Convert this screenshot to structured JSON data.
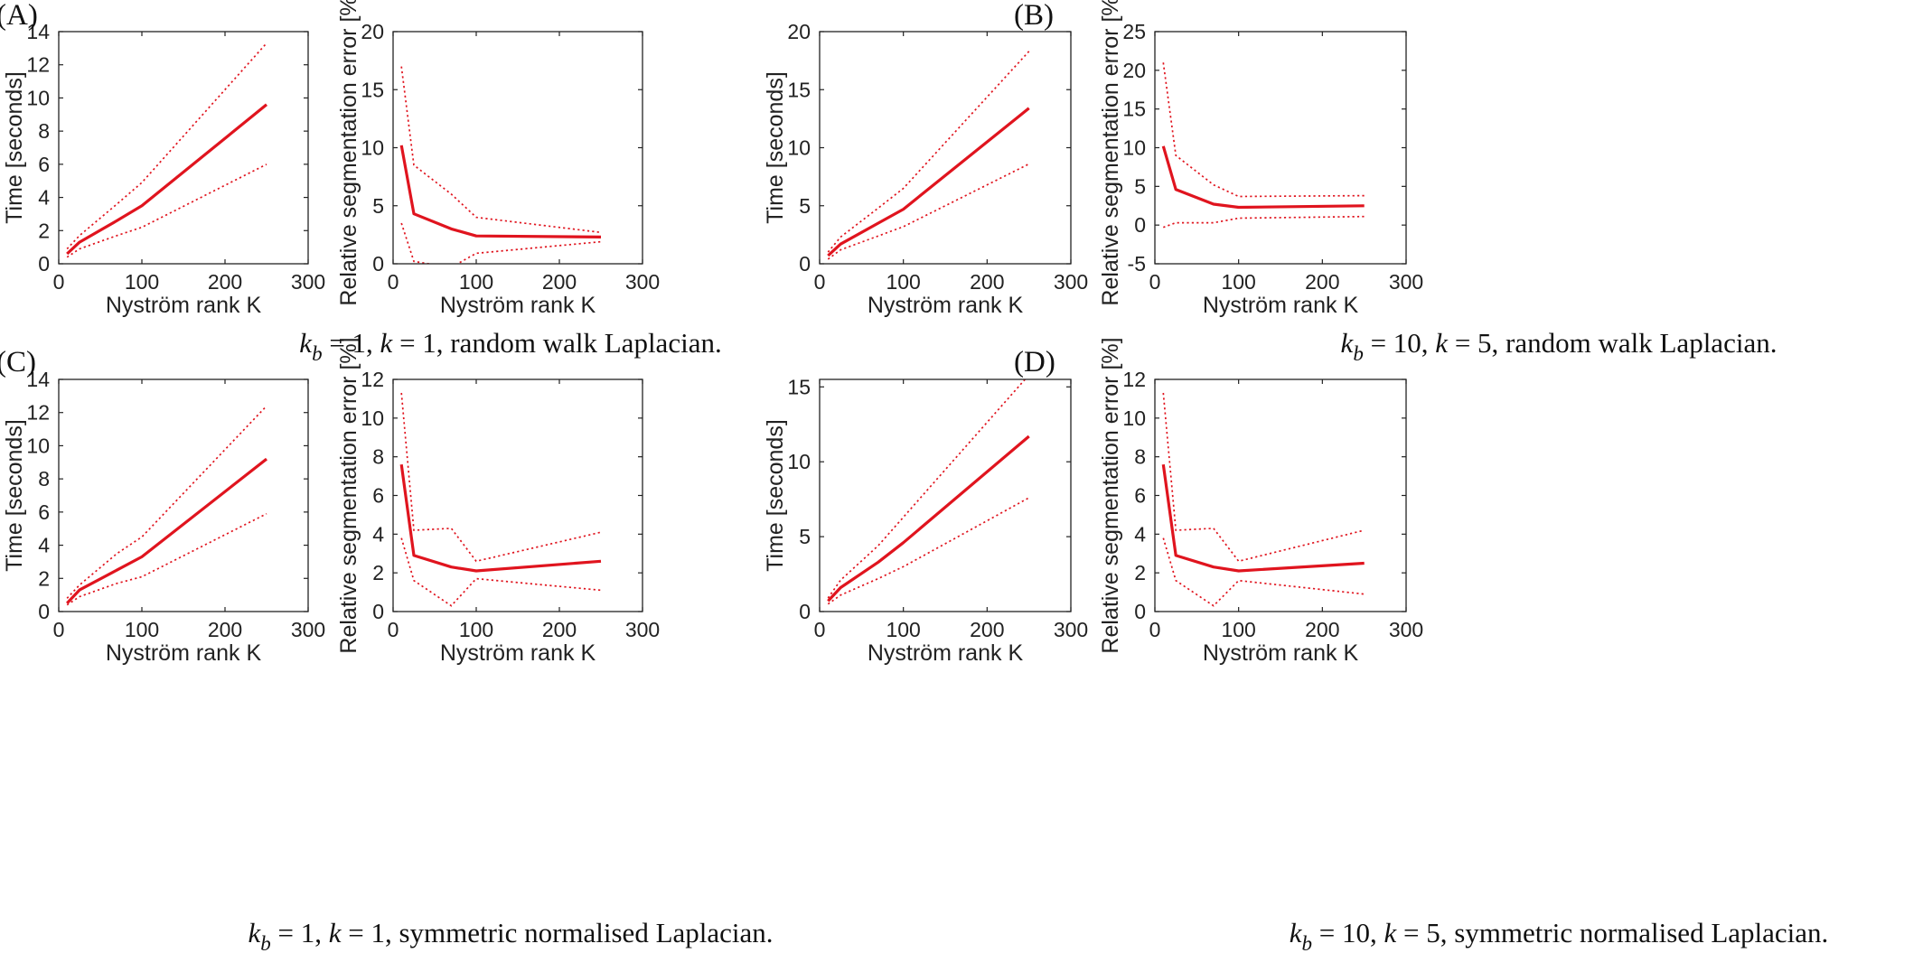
{
  "chart_data": [
    {
      "panel": "(A)",
      "plot": 1,
      "type": "line",
      "xlabel": "Nyström rank K",
      "ylabel": "Time [seconds]",
      "xlim": [
        0,
        300
      ],
      "ylim": [
        0,
        14
      ],
      "xticks": [
        "0",
        "100",
        "200",
        "300"
      ],
      "yticks": [
        "0",
        "2",
        "4",
        "6",
        "8",
        "10",
        "12",
        "14"
      ],
      "x": [
        10,
        25,
        70,
        100,
        250
      ],
      "series": [
        {
          "style": "mean",
          "values": [
            0.6,
            1.3,
            2.6,
            3.5,
            9.6
          ]
        },
        {
          "style": "upper",
          "values": [
            0.9,
            1.7,
            3.6,
            4.9,
            13.3
          ]
        },
        {
          "style": "lower",
          "values": [
            0.4,
            0.9,
            1.7,
            2.2,
            6.0
          ]
        }
      ]
    },
    {
      "panel": "(A)",
      "plot": 2,
      "type": "line",
      "xlabel": "Nyström rank K",
      "ylabel": "Relative segmentation error [%]",
      "xlim": [
        0,
        300
      ],
      "ylim": [
        0,
        20
      ],
      "xticks": [
        "0",
        "100",
        "200",
        "300"
      ],
      "yticks": [
        "0",
        "5",
        "10",
        "15",
        "20"
      ],
      "x": [
        10,
        25,
        70,
        100,
        250
      ],
      "series": [
        {
          "style": "mean",
          "values": [
            10.2,
            4.3,
            3.0,
            2.4,
            2.3
          ]
        },
        {
          "style": "upper",
          "values": [
            17.0,
            8.5,
            6.0,
            4.0,
            2.7
          ]
        },
        {
          "style": "lower",
          "values": [
            3.5,
            0.2,
            -0.3,
            0.9,
            1.9
          ]
        }
      ]
    },
    {
      "panel": "(B)",
      "plot": 1,
      "type": "line",
      "xlabel": "Nyström rank K",
      "ylabel": "Time [seconds]",
      "xlim": [
        0,
        300
      ],
      "ylim": [
        0,
        20
      ],
      "xticks": [
        "0",
        "100",
        "200",
        "300"
      ],
      "yticks": [
        "0",
        "5",
        "10",
        "15",
        "20"
      ],
      "x": [
        10,
        25,
        70,
        100,
        250
      ],
      "series": [
        {
          "style": "mean",
          "values": [
            0.7,
            1.7,
            3.5,
            4.7,
            13.4
          ]
        },
        {
          "style": "upper",
          "values": [
            1.0,
            2.3,
            4.8,
            6.5,
            18.3
          ]
        },
        {
          "style": "lower",
          "values": [
            0.4,
            1.2,
            2.4,
            3.2,
            8.6
          ]
        }
      ]
    },
    {
      "panel": "(B)",
      "plot": 2,
      "type": "line",
      "xlabel": "Nyström rank K",
      "ylabel": "Relative segmentation error [%]",
      "xlim": [
        0,
        300
      ],
      "ylim": [
        -5,
        25
      ],
      "xticks": [
        "0",
        "100",
        "200",
        "300"
      ],
      "yticks": [
        "-5",
        "0",
        "5",
        "10",
        "15",
        "20",
        "25"
      ],
      "x": [
        10,
        25,
        70,
        100,
        250
      ],
      "series": [
        {
          "style": "mean",
          "values": [
            10.2,
            4.6,
            2.7,
            2.3,
            2.5
          ]
        },
        {
          "style": "upper",
          "values": [
            21.0,
            9.0,
            5.2,
            3.7,
            3.8
          ]
        },
        {
          "style": "lower",
          "values": [
            -0.3,
            0.3,
            0.3,
            0.9,
            1.1
          ]
        }
      ]
    },
    {
      "panel": "(C)",
      "plot": 1,
      "type": "line",
      "xlabel": "Nyström rank K",
      "ylabel": "Time [seconds]",
      "xlim": [
        0,
        300
      ],
      "ylim": [
        0,
        14
      ],
      "xticks": [
        "0",
        "100",
        "200",
        "300"
      ],
      "yticks": [
        "0",
        "2",
        "4",
        "6",
        "8",
        "10",
        "12",
        "14"
      ],
      "x": [
        10,
        25,
        70,
        100,
        250
      ],
      "series": [
        {
          "style": "mean",
          "values": [
            0.5,
            1.3,
            2.5,
            3.3,
            9.2
          ]
        },
        {
          "style": "upper",
          "values": [
            0.8,
            1.6,
            3.5,
            4.5,
            12.4
          ]
        },
        {
          "style": "lower",
          "values": [
            0.4,
            0.9,
            1.7,
            2.1,
            5.9
          ]
        }
      ]
    },
    {
      "panel": "(C)",
      "plot": 2,
      "type": "line",
      "xlabel": "Nyström rank K",
      "ylabel": "Relative segmentation error [%]",
      "xlim": [
        0,
        300
      ],
      "ylim": [
        0,
        12
      ],
      "xticks": [
        "0",
        "100",
        "200",
        "300"
      ],
      "yticks": [
        "0",
        "2",
        "4",
        "6",
        "8",
        "10",
        "12"
      ],
      "x": [
        10,
        25,
        70,
        100,
        250
      ],
      "series": [
        {
          "style": "mean",
          "values": [
            7.6,
            2.9,
            2.3,
            2.1,
            2.6
          ]
        },
        {
          "style": "upper",
          "values": [
            11.3,
            4.2,
            4.3,
            2.6,
            4.1
          ]
        },
        {
          "style": "lower",
          "values": [
            3.8,
            1.6,
            0.3,
            1.7,
            1.1
          ]
        }
      ]
    },
    {
      "panel": "(D)",
      "plot": 1,
      "type": "line",
      "xlabel": "Nyström rank K",
      "ylabel": "Time [seconds]",
      "xlim": [
        0,
        300
      ],
      "ylim": [
        0,
        15.5
      ],
      "xticks": [
        "0",
        "100",
        "200",
        "300"
      ],
      "yticks": [
        "0",
        "5",
        "10",
        "15"
      ],
      "x": [
        10,
        25,
        70,
        100,
        250
      ],
      "series": [
        {
          "style": "mean",
          "values": [
            0.7,
            1.6,
            3.3,
            4.6,
            11.7
          ]
        },
        {
          "style": "upper",
          "values": [
            0.9,
            2.1,
            4.4,
            6.3,
            15.8
          ]
        },
        {
          "style": "lower",
          "values": [
            0.5,
            1.1,
            2.2,
            3.0,
            7.6
          ]
        }
      ]
    },
    {
      "panel": "(D)",
      "plot": 2,
      "type": "line",
      "xlabel": "Nyström rank K",
      "ylabel": "Relative segmentation error [%]",
      "xlim": [
        0,
        300
      ],
      "ylim": [
        0,
        12
      ],
      "xticks": [
        "0",
        "100",
        "200",
        "300"
      ],
      "yticks": [
        "0",
        "2",
        "4",
        "6",
        "8",
        "10",
        "12"
      ],
      "x": [
        10,
        25,
        70,
        100,
        250
      ],
      "series": [
        {
          "style": "mean",
          "values": [
            7.6,
            2.9,
            2.3,
            2.1,
            2.5
          ]
        },
        {
          "style": "upper",
          "values": [
            11.3,
            4.2,
            4.3,
            2.6,
            4.2
          ]
        },
        {
          "style": "lower",
          "values": [
            3.8,
            1.6,
            0.3,
            1.6,
            0.9
          ]
        }
      ]
    }
  ],
  "panels": [
    {
      "letter": "(A)",
      "caption": {
        "k_b": "1",
        "k": "1",
        "text": "random walk Laplacian."
      }
    },
    {
      "letter": "(B)",
      "caption": {
        "k_b": "10",
        "k": "5",
        "text": "random walk Laplacian."
      }
    },
    {
      "letter": "(C)",
      "caption": {
        "k_b": "1",
        "k": "1",
        "text": "symmetric normalised Laplacian."
      }
    },
    {
      "letter": "(D)",
      "caption": {
        "k_b": "10",
        "k": "5",
        "text": "symmetric normalised Laplacian."
      }
    }
  ],
  "colors": {
    "line": "#e0141e",
    "axis": "#222222"
  }
}
